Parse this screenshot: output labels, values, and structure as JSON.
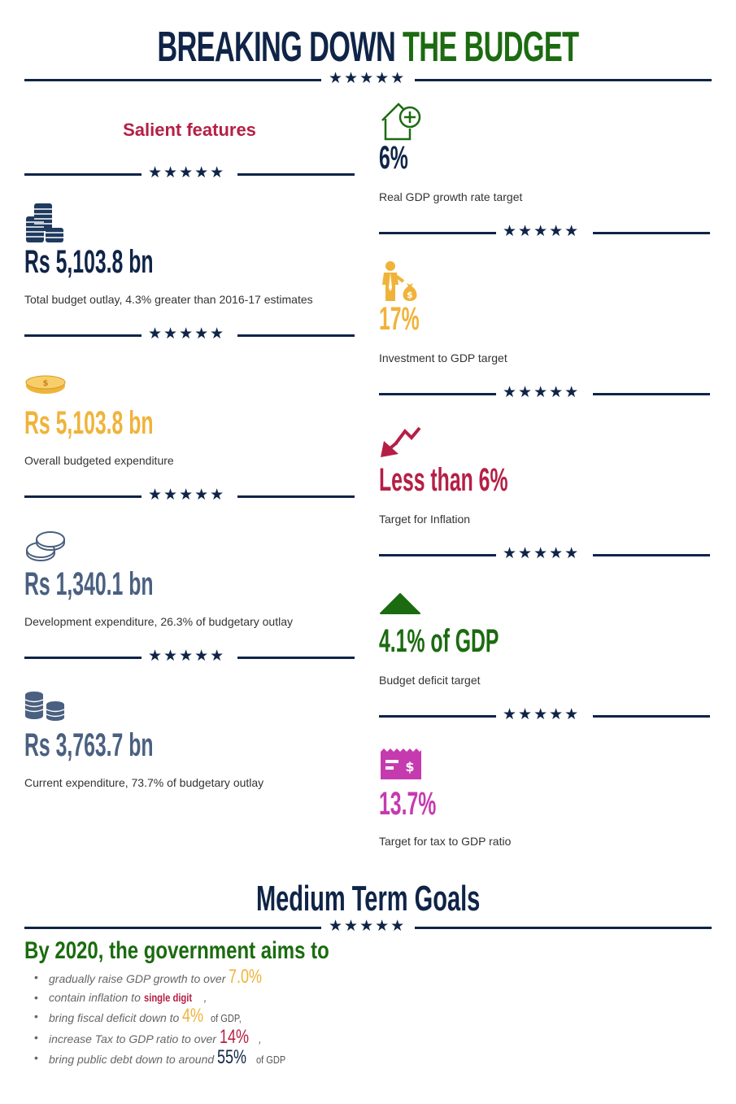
{
  "header": {
    "title_part1": "BREAKING DOWN",
    "title_part2": "THE BUDGET"
  },
  "left": {
    "subtitle": "Salient features",
    "items": [
      {
        "icon": "coin-stacks-icon",
        "value": "Rs 5,103.8 bn",
        "desc": "Total budget outlay, 4.3% greater than 2016-17 estimates",
        "color": "#0f2447"
      },
      {
        "icon": "gold-coin-icon",
        "value": "Rs 5,103.8 bn",
        "desc": "Overall budgeted expenditure",
        "color": "#f0b33a"
      },
      {
        "icon": "two-coins-icon",
        "value": "Rs 1,340.1 bn",
        "desc": "Development expenditure, 26.3% of budgetary outlay",
        "color": "#4a6080"
      },
      {
        "icon": "coin-piles-icon",
        "value": "Rs 3,763.7 bn",
        "desc": "Current expenditure,  73.7% of budgetary outlay",
        "color": "#4a6080"
      }
    ]
  },
  "right": {
    "items": [
      {
        "icon": "house-plus-icon",
        "value": "6%",
        "desc": "Real GDP growth rate target",
        "color": "#0f2447"
      },
      {
        "icon": "investor-moneybag-icon",
        "value": "17%",
        "desc": "Investment to GDP target",
        "color": "#f0b33a"
      },
      {
        "icon": "down-trend-arrow-icon",
        "value": "Less than 6%",
        "desc": "Target for Inflation",
        "color": "#b51f45"
      },
      {
        "icon": "up-triangle-icon",
        "value": "4.1% of GDP",
        "desc": "Budget deficit target",
        "color": "#1b6b10"
      },
      {
        "icon": "receipt-dollar-icon",
        "value": "13.7%",
        "desc": "Target for tax to GDP ratio",
        "color": "#c63ab0"
      }
    ]
  },
  "goals": {
    "title": "Medium Term Goals",
    "aims": "By 2020, the government aims to",
    "list": [
      {
        "pre": "gradually raise GDP growth to over ",
        "hl": "7.0%",
        "post": ""
      },
      {
        "pre": "contain inflation to ",
        "hl": "single digit",
        "post": ","
      },
      {
        "pre": "bring fiscal deficit down to ",
        "hl": "4%",
        "post": " of GDP,"
      },
      {
        "pre": "increase Tax to GDP ratio to over ",
        "hl": "14%",
        "post": ","
      },
      {
        "pre": "bring public debt down to around ",
        "hl": "55%",
        "post": " of GDP"
      }
    ]
  },
  "stars": "★★★★★",
  "colors": {
    "navy": "#0f2447",
    "green": "#1b6b10",
    "gold": "#f0b33a",
    "crimson": "#b51f45",
    "slate": "#4a6080",
    "magenta": "#c63ab0"
  }
}
